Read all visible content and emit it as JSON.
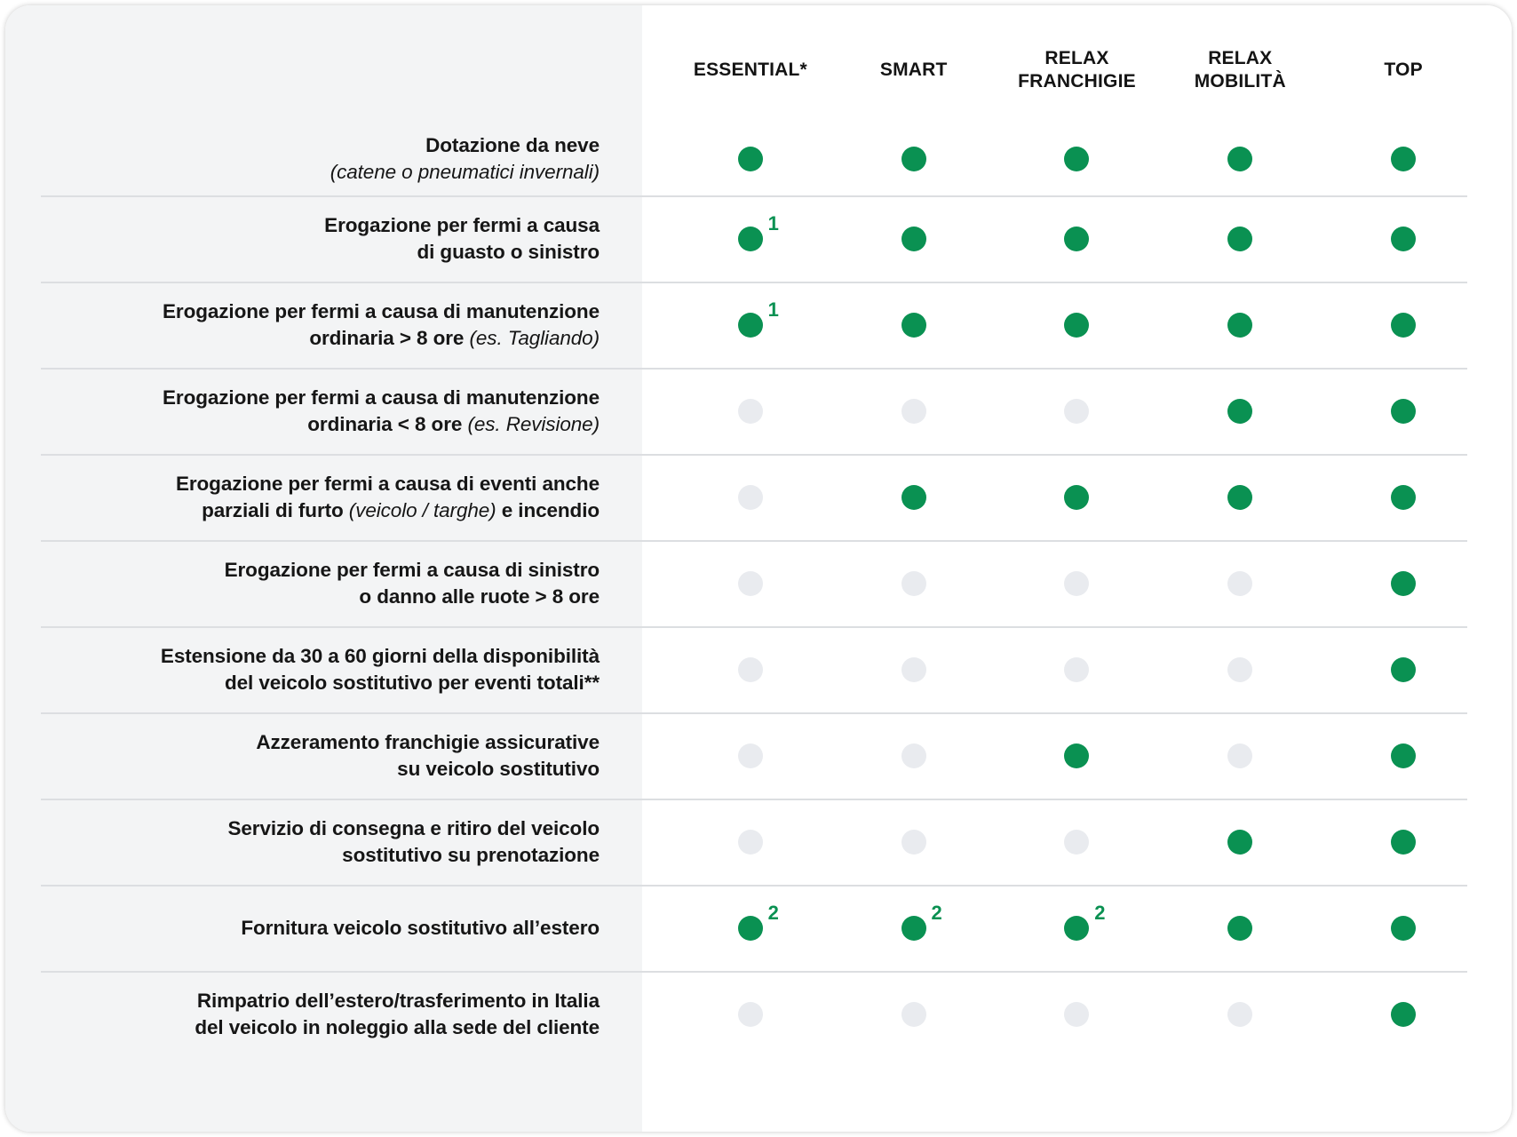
{
  "colors": {
    "included_dot_green": "#0a9152",
    "excluded_dot_gray": "#e9ebef",
    "label_column_background": "#f3f4f5",
    "separator": "#dcdee1",
    "text": "#161616"
  },
  "table": {
    "columns": [
      {
        "id": "essential",
        "label": "ESSENTIAL*"
      },
      {
        "id": "smart",
        "label": "SMART"
      },
      {
        "id": "relax-franchigie",
        "label": "RELAX FRANCHIGIE"
      },
      {
        "id": "relax-mobilita",
        "label": "RELAX MOBILITÀ"
      },
      {
        "id": "top",
        "label": "TOP"
      }
    ],
    "rows": [
      {
        "label_lines": [
          [
            {
              "text": "Dotazione da neve",
              "style": "bold"
            }
          ],
          [
            {
              "text": "(catene o pneumatici invernali)",
              "style": "italic"
            }
          ]
        ],
        "cells": [
          {
            "state": "included"
          },
          {
            "state": "included"
          },
          {
            "state": "included"
          },
          {
            "state": "included"
          },
          {
            "state": "included"
          }
        ]
      },
      {
        "label_lines": [
          [
            {
              "text": "Erogazione per fermi a causa",
              "style": "bold"
            }
          ],
          [
            {
              "text": "di guasto o sinistro",
              "style": "bold"
            }
          ]
        ],
        "cells": [
          {
            "state": "included",
            "note": "1"
          },
          {
            "state": "included"
          },
          {
            "state": "included"
          },
          {
            "state": "included"
          },
          {
            "state": "included"
          }
        ]
      },
      {
        "label_lines": [
          [
            {
              "text": "Erogazione per fermi a causa di manutenzione",
              "style": "bold"
            }
          ],
          [
            {
              "text": "ordinaria > 8 ore ",
              "style": "bold"
            },
            {
              "text": "(es. Tagliando)",
              "style": "italic"
            }
          ]
        ],
        "cells": [
          {
            "state": "included",
            "note": "1"
          },
          {
            "state": "included"
          },
          {
            "state": "included"
          },
          {
            "state": "included"
          },
          {
            "state": "included"
          }
        ]
      },
      {
        "label_lines": [
          [
            {
              "text": "Erogazione per fermi a causa di manutenzione",
              "style": "bold"
            }
          ],
          [
            {
              "text": "ordinaria < 8 ore ",
              "style": "bold"
            },
            {
              "text": "(es. Revisione)",
              "style": "italic"
            }
          ]
        ],
        "cells": [
          {
            "state": "excluded"
          },
          {
            "state": "excluded"
          },
          {
            "state": "excluded"
          },
          {
            "state": "included"
          },
          {
            "state": "included"
          }
        ]
      },
      {
        "label_lines": [
          [
            {
              "text": "Erogazione per fermi a causa di eventi anche",
              "style": "bold"
            }
          ],
          [
            {
              "text": "parziali di furto ",
              "style": "bold"
            },
            {
              "text": "(veicolo / targhe)",
              "style": "italic"
            },
            {
              "text": " e incendio",
              "style": "bold"
            }
          ]
        ],
        "cells": [
          {
            "state": "excluded"
          },
          {
            "state": "included"
          },
          {
            "state": "included"
          },
          {
            "state": "included"
          },
          {
            "state": "included"
          }
        ]
      },
      {
        "label_lines": [
          [
            {
              "text": "Erogazione per fermi a causa di sinistro",
              "style": "bold"
            }
          ],
          [
            {
              "text": "o danno alle ruote > 8 ore",
              "style": "bold"
            }
          ]
        ],
        "cells": [
          {
            "state": "excluded"
          },
          {
            "state": "excluded"
          },
          {
            "state": "excluded"
          },
          {
            "state": "excluded"
          },
          {
            "state": "included"
          }
        ]
      },
      {
        "label_lines": [
          [
            {
              "text": "Estensione da 30 a 60 giorni della disponibilità",
              "style": "bold"
            }
          ],
          [
            {
              "text": "del veicolo sostitutivo per eventi totali**",
              "style": "bold"
            }
          ]
        ],
        "cells": [
          {
            "state": "excluded"
          },
          {
            "state": "excluded"
          },
          {
            "state": "excluded"
          },
          {
            "state": "excluded"
          },
          {
            "state": "included"
          }
        ]
      },
      {
        "label_lines": [
          [
            {
              "text": "Azzeramento franchigie assicurative",
              "style": "bold"
            }
          ],
          [
            {
              "text": "su veicolo sostitutivo",
              "style": "bold"
            }
          ]
        ],
        "cells": [
          {
            "state": "excluded"
          },
          {
            "state": "excluded"
          },
          {
            "state": "included"
          },
          {
            "state": "excluded"
          },
          {
            "state": "included"
          }
        ]
      },
      {
        "label_lines": [
          [
            {
              "text": "Servizio di consegna e ritiro del veicolo",
              "style": "bold"
            }
          ],
          [
            {
              "text": "sostitutivo su prenotazione",
              "style": "bold"
            }
          ]
        ],
        "cells": [
          {
            "state": "excluded"
          },
          {
            "state": "excluded"
          },
          {
            "state": "excluded"
          },
          {
            "state": "included"
          },
          {
            "state": "included"
          }
        ]
      },
      {
        "label_lines": [
          [
            {
              "text": "Fornitura veicolo sostitutivo all’estero",
              "style": "bold"
            }
          ]
        ],
        "cells": [
          {
            "state": "included",
            "note": "2"
          },
          {
            "state": "included",
            "note": "2"
          },
          {
            "state": "included",
            "note": "2"
          },
          {
            "state": "included"
          },
          {
            "state": "included"
          }
        ]
      },
      {
        "label_lines": [
          [
            {
              "text": "Rimpatrio dell’estero/trasferimento in Italia",
              "style": "bold"
            }
          ],
          [
            {
              "text": "del veicolo in noleggio alla sede del cliente",
              "style": "bold"
            }
          ]
        ],
        "cells": [
          {
            "state": "excluded"
          },
          {
            "state": "excluded"
          },
          {
            "state": "excluded"
          },
          {
            "state": "excluded"
          },
          {
            "state": "included"
          }
        ]
      }
    ]
  }
}
